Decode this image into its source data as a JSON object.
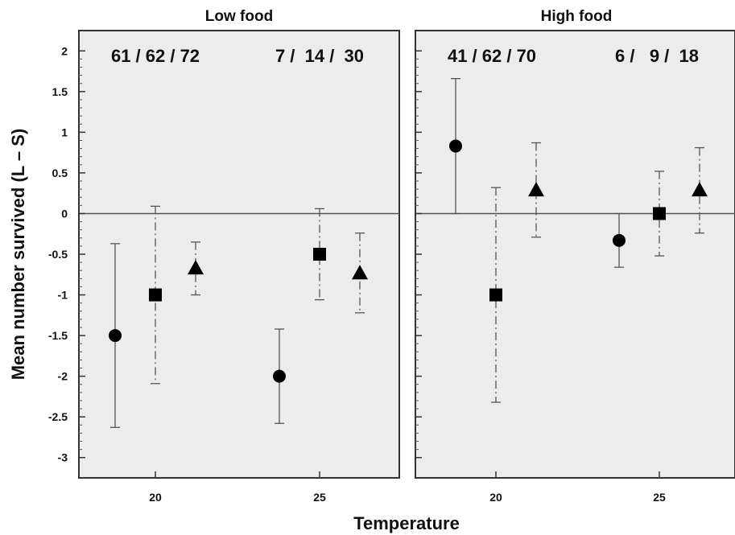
{
  "chart_data": {
    "type": "scatter",
    "xlabel": "Temperature",
    "ylabel": "Mean number survived (L – S)",
    "ylim": [
      -3.25,
      2.25
    ],
    "yticks": [
      2,
      1.5,
      1,
      0.5,
      0,
      -0.5,
      -1,
      -1.5,
      -2,
      -2.5,
      -3
    ],
    "ytick_labels": [
      "2",
      "1.5",
      "1",
      "0.5",
      "0",
      "-0.5",
      "-1",
      "-1.5",
      "-2",
      "-2.5",
      "-3"
    ],
    "categories": [
      "20",
      "25"
    ],
    "reference_line": 0,
    "grid": false,
    "panels": [
      {
        "title": "Low food",
        "count_labels": [
          "61 / 62 / 72",
          "7 /  14 /  30"
        ],
        "series": [
          {
            "marker": "circle",
            "line": "solid",
            "x": [
              "20",
              "25"
            ],
            "y": [
              -1.5,
              -2.0
            ],
            "err_low": [
              -2.63,
              -2.58
            ],
            "err_high": [
              -0.37,
              -1.42
            ]
          },
          {
            "marker": "square",
            "line": "dash-dot",
            "x": [
              "20",
              "25"
            ],
            "y": [
              -1.0,
              -0.5
            ],
            "err_low": [
              -2.09,
              -1.06
            ],
            "err_high": [
              0.09,
              0.06
            ]
          },
          {
            "marker": "triangle",
            "line": "dash-dot",
            "x": [
              "20",
              "25"
            ],
            "y": [
              -0.67,
              -0.73
            ],
            "err_low": [
              -1.0,
              -1.22
            ],
            "err_high": [
              -0.35,
              -0.24
            ]
          }
        ]
      },
      {
        "title": "High food",
        "count_labels": [
          "41 / 62 / 70",
          "6 /   9 /  18"
        ],
        "series": [
          {
            "marker": "circle",
            "line": "solid",
            "x": [
              "20",
              "25"
            ],
            "y": [
              0.83,
              -0.33
            ],
            "err_low": [
              0.0,
              -0.66
            ],
            "err_high": [
              1.66,
              0.0
            ]
          },
          {
            "marker": "square",
            "line": "dash-dot",
            "x": [
              "20",
              "25"
            ],
            "y": [
              -1.0,
              0.0
            ],
            "err_low": [
              -2.32,
              -0.52
            ],
            "err_high": [
              0.32,
              0.52
            ]
          },
          {
            "marker": "triangle",
            "line": "dash-dot",
            "x": [
              "20",
              "25"
            ],
            "y": [
              0.29,
              0.29
            ],
            "err_low": [
              -0.29,
              -0.24
            ],
            "err_high": [
              0.87,
              0.81
            ]
          }
        ]
      }
    ]
  }
}
